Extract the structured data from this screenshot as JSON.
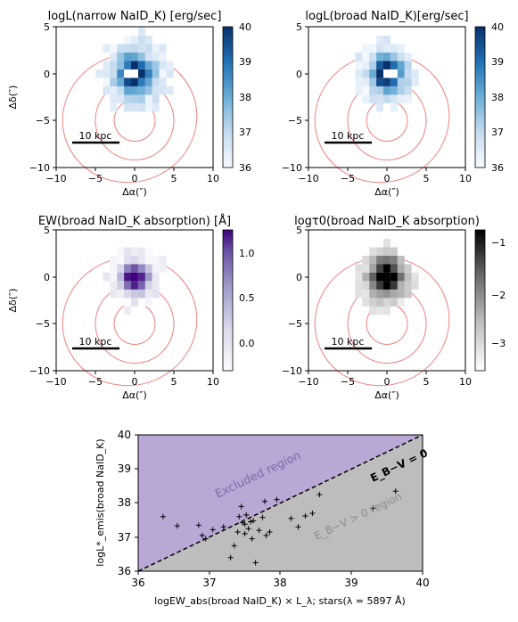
{
  "chart_data": [
    {
      "type": "heatmap",
      "title": "logL(narrow NaID_K) [erg/sec]",
      "xlabel": "Δα(″)",
      "ylabel": "Δδ(″)",
      "xlim": [
        -10,
        10
      ],
      "ylim": [
        -10,
        5
      ],
      "xticks": [
        "−10",
        "−5",
        "0",
        "5",
        "10"
      ],
      "yticks": [
        "5",
        "0",
        "−5",
        "−10"
      ],
      "colorbar": {
        "cmap": "Blues",
        "range": [
          36,
          40
        ],
        "ticks": [
          "36",
          "37",
          "38",
          "39",
          "40"
        ]
      },
      "scalebar": "10 kpc",
      "grid": false
    },
    {
      "type": "heatmap",
      "title": "logL(broad NaID_K)[erg/sec]",
      "xlabel": "Δα(″)",
      "ylabel": "",
      "xlim": [
        -10,
        10
      ],
      "ylim": [
        -10,
        5
      ],
      "xticks": [
        "−10",
        "−5",
        "0",
        "5",
        "10"
      ],
      "yticks": [
        "5",
        "0",
        "−5",
        "−10"
      ],
      "colorbar": {
        "cmap": "Blues",
        "range": [
          36,
          40
        ],
        "ticks": [
          "36",
          "37",
          "38",
          "39",
          "40"
        ]
      },
      "scalebar": "10 kpc",
      "grid": false
    },
    {
      "type": "heatmap",
      "title": "EW(broad NaID_K absorption) [Å]",
      "xlabel": "Δα(″)",
      "ylabel": "Δδ(″)",
      "xlim": [
        -10,
        10
      ],
      "ylim": [
        -10,
        5
      ],
      "xticks": [
        "−10",
        "−5",
        "0",
        "5",
        "10"
      ],
      "yticks": [
        "5",
        "0",
        "−5",
        "−10"
      ],
      "colorbar": {
        "cmap": "Purples",
        "range": [
          -0.3,
          1.25
        ],
        "ticks": [
          "0.0",
          "0.5",
          "1.0"
        ]
      },
      "scalebar": "10 kpc",
      "grid": false
    },
    {
      "type": "heatmap",
      "title": "logτ0(broad NaID_K absorption)",
      "xlabel": "Δα(″)",
      "ylabel": "",
      "xlim": [
        -10,
        10
      ],
      "ylim": [
        -10,
        5
      ],
      "xticks": [
        "−10",
        "−5",
        "0",
        "5",
        "10"
      ],
      "yticks": [
        "5",
        "0",
        "−5",
        "−10"
      ],
      "colorbar": {
        "cmap": "Greys",
        "range": [
          -3.5,
          -0.6
        ],
        "ticks": [
          "−1",
          "−2",
          "−3"
        ]
      },
      "scalebar": "10 kpc",
      "grid": false
    },
    {
      "type": "scatter",
      "xlabel": "logEW_abs(broad NaID_K) × L_λ; stars(λ = 5897 Å)",
      "ylabel": "logL*_emis(broad NaID_K)",
      "xlim": [
        36,
        40
      ],
      "ylim": [
        36,
        40
      ],
      "xticks": [
        "36",
        "37",
        "38",
        "39",
        "40"
      ],
      "yticks": [
        "36",
        "37",
        "38",
        "39",
        "40"
      ],
      "annotations": [
        "Excluded region",
        "E_B−V = 0",
        "E_B−V > 0 region"
      ],
      "x": [
        36.35,
        36.55,
        36.85,
        36.9,
        36.95,
        37.05,
        37.2,
        37.3,
        37.35,
        37.4,
        37.42,
        37.45,
        37.47,
        37.5,
        37.5,
        37.52,
        37.55,
        37.58,
        37.6,
        37.62,
        37.65,
        37.7,
        37.75,
        37.78,
        37.8,
        37.85,
        37.95,
        38.15,
        38.25,
        38.35,
        38.45,
        38.55,
        39.3,
        39.62
      ],
      "y": [
        37.6,
        37.33,
        37.35,
        37.05,
        36.95,
        37.22,
        37.3,
        36.4,
        36.75,
        37.15,
        37.6,
        37.9,
        37.42,
        37.1,
        37.38,
        37.65,
        37.25,
        37.45,
        36.95,
        37.48,
        36.25,
        37.2,
        37.58,
        38.05,
        37.05,
        37.15,
        38.1,
        37.55,
        37.3,
        37.62,
        37.7,
        38.25,
        37.85,
        38.35
      ]
    }
  ]
}
